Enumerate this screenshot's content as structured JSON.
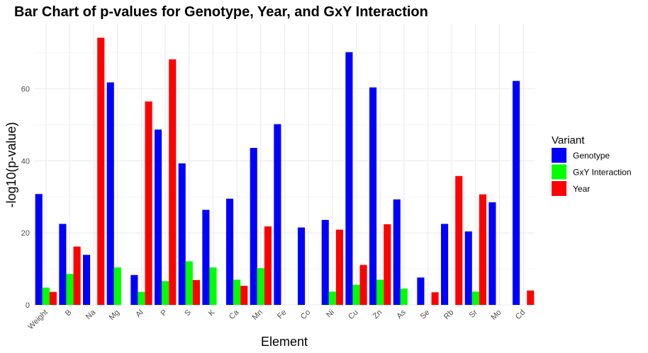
{
  "chart_data": {
    "type": "bar",
    "title": "Bar Chart of p-values for Genotype, Year, and GxY Interaction",
    "xlabel": "Element",
    "ylabel": "-log10(p-value)",
    "ylim": [
      0,
      78
    ],
    "yticks": [
      0,
      20,
      40,
      60
    ],
    "grid": true,
    "legend": {
      "title": "Variant",
      "position": "right"
    },
    "categories": [
      "Weight",
      "B",
      "Na",
      "Mg",
      "Al",
      "P",
      "S",
      "K",
      "Ca",
      "Mn",
      "Fe",
      "Co",
      "Ni",
      "Cu",
      "Zn",
      "As",
      "Se",
      "Rb",
      "Sr",
      "Mo",
      "Cd"
    ],
    "series": [
      {
        "name": "Genotype",
        "color": "#0000ff",
        "values": [
          30.8,
          22.5,
          13.9,
          61.8,
          8.3,
          48.7,
          39.3,
          26.4,
          29.5,
          43.6,
          50.2,
          21.5,
          23.6,
          70.2,
          60.4,
          29.3,
          7.6,
          22.5,
          20.4,
          28.5,
          62.2
        ]
      },
      {
        "name": "GxY Interaction",
        "color": "#00ff00",
        "values": [
          4.8,
          8.6,
          null,
          10.4,
          3.6,
          6.6,
          12.1,
          10.4,
          7.0,
          10.2,
          null,
          null,
          3.7,
          5.6,
          7.0,
          4.5,
          null,
          null,
          3.7,
          null,
          null
        ]
      },
      {
        "name": "Year",
        "color": "#ff0000",
        "values": [
          3.6,
          16.2,
          74.2,
          null,
          56.5,
          68.2,
          6.9,
          null,
          5.3,
          21.8,
          null,
          null,
          20.9,
          11.1,
          22.4,
          null,
          3.5,
          35.8,
          30.7,
          null,
          4.0
        ]
      }
    ]
  }
}
